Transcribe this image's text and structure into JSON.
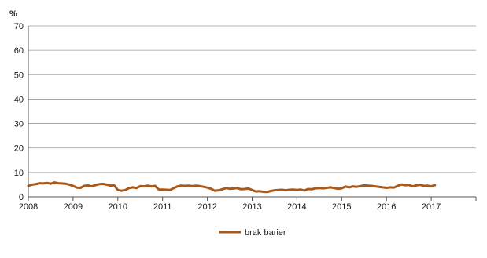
{
  "chart_data": {
    "type": "line",
    "title": "",
    "ylabel": "%",
    "xlabel": "",
    "ylim": [
      0,
      70
    ],
    "yticks": [
      "0",
      "10",
      "20",
      "30",
      "40",
      "50",
      "60",
      "70"
    ],
    "xlim": [
      "2008-01",
      "2017-12"
    ],
    "xticks": [
      "2008",
      "2009",
      "2010",
      "2011",
      "2012",
      "2013",
      "2014",
      "2015",
      "2016",
      "2017"
    ],
    "grid": true,
    "legend_position": "bottom-center",
    "series": [
      {
        "name": "brak barier",
        "color": "#a8591a",
        "x": [
          "2008-01",
          "2008-02",
          "2008-03",
          "2008-04",
          "2008-05",
          "2008-06",
          "2008-07",
          "2008-08",
          "2008-09",
          "2008-10",
          "2008-11",
          "2008-12",
          "2009-01",
          "2009-02",
          "2009-03",
          "2009-04",
          "2009-05",
          "2009-06",
          "2009-07",
          "2009-08",
          "2009-09",
          "2009-10",
          "2009-11",
          "2009-12",
          "2010-01",
          "2010-02",
          "2010-03",
          "2010-04",
          "2010-05",
          "2010-06",
          "2010-07",
          "2010-08",
          "2010-09",
          "2010-10",
          "2010-11",
          "2010-12",
          "2011-01",
          "2011-02",
          "2011-03",
          "2011-04",
          "2011-05",
          "2011-06",
          "2011-07",
          "2011-08",
          "2011-09",
          "2011-10",
          "2011-11",
          "2011-12",
          "2012-01",
          "2012-02",
          "2012-03",
          "2012-04",
          "2012-05",
          "2012-06",
          "2012-07",
          "2012-08",
          "2012-09",
          "2012-10",
          "2012-11",
          "2012-12",
          "2013-01",
          "2013-02",
          "2013-03",
          "2013-04",
          "2013-05",
          "2013-06",
          "2013-07",
          "2013-08",
          "2013-09",
          "2013-10",
          "2013-11",
          "2013-12",
          "2014-01",
          "2014-02",
          "2014-03",
          "2014-04",
          "2014-05",
          "2014-06",
          "2014-07",
          "2014-08",
          "2014-09",
          "2014-10",
          "2014-11",
          "2014-12",
          "2015-01",
          "2015-02",
          "2015-03",
          "2015-04",
          "2015-05",
          "2015-06",
          "2015-07",
          "2015-08",
          "2015-09",
          "2015-10",
          "2015-11",
          "2015-12",
          "2016-01",
          "2016-02",
          "2016-03",
          "2016-04",
          "2016-05",
          "2016-06",
          "2016-07",
          "2016-08",
          "2016-09",
          "2016-10",
          "2016-11",
          "2016-12",
          "2017-01",
          "2017-02"
        ],
        "values": [
          4.5,
          5.0,
          5.2,
          5.6,
          5.5,
          5.7,
          5.4,
          5.9,
          5.6,
          5.5,
          5.4,
          5.0,
          4.5,
          3.8,
          3.7,
          4.5,
          4.7,
          4.3,
          4.8,
          5.2,
          5.3,
          5.0,
          4.6,
          4.8,
          2.8,
          2.5,
          2.8,
          3.6,
          3.9,
          3.6,
          4.4,
          4.3,
          4.6,
          4.3,
          4.5,
          3.0,
          3.0,
          2.9,
          2.8,
          3.6,
          4.3,
          4.6,
          4.5,
          4.6,
          4.4,
          4.6,
          4.4,
          4.1,
          3.8,
          3.3,
          2.5,
          2.7,
          3.1,
          3.6,
          3.3,
          3.4,
          3.6,
          3.1,
          3.2,
          3.4,
          2.8,
          2.2,
          2.3,
          2.1,
          2.0,
          2.4,
          2.7,
          2.8,
          2.9,
          2.7,
          2.9,
          3.0,
          2.8,
          3.0,
          2.6,
          3.2,
          3.1,
          3.5,
          3.6,
          3.5,
          3.7,
          3.9,
          3.6,
          3.3,
          3.5,
          4.2,
          3.9,
          4.3,
          4.1,
          4.4,
          4.7,
          4.6,
          4.5,
          4.3,
          4.1,
          3.9,
          3.7,
          3.9,
          3.8,
          4.5,
          5.1,
          4.8,
          4.9,
          4.3,
          4.7,
          4.9,
          4.5,
          4.6,
          4.3,
          4.8
        ]
      }
    ]
  }
}
